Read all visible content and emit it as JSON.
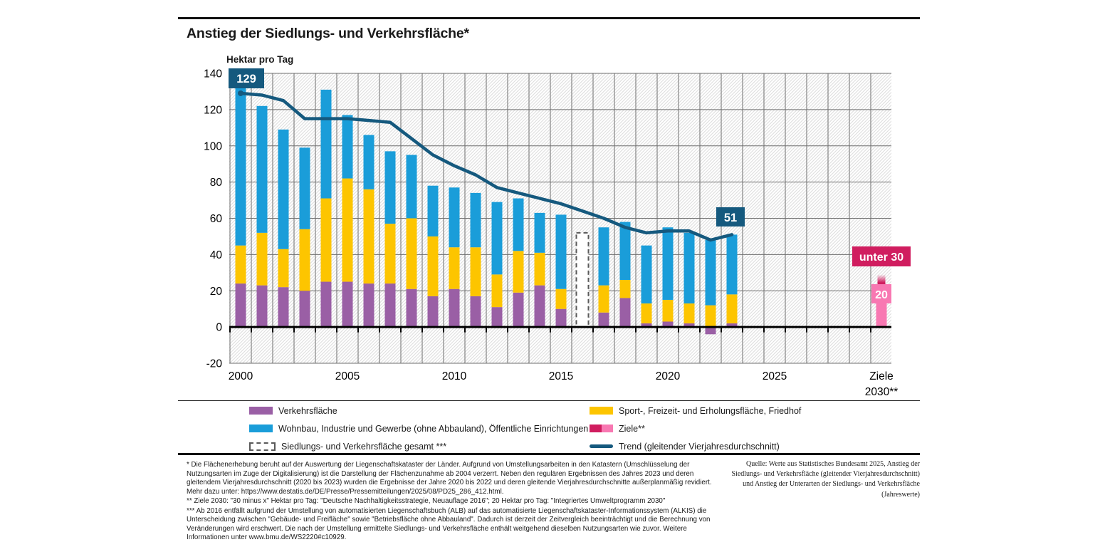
{
  "title": "Anstieg der Siedlungs- und Verkehrsfläche*",
  "y_axis_title": "Hektar pro Tag",
  "colors": {
    "purple": "#9a5fa5",
    "yellow": "#fdc500",
    "blue": "#1a9dd9",
    "teal": "#15597e",
    "crimson": "#d01d5f",
    "pink": "#f878b2",
    "grid": "#6e6e6e",
    "hatch": "#dedede",
    "dash_border": "#595959"
  },
  "chart_data": {
    "type": "bar",
    "subtype": "stacked bars with moving-average trend line",
    "unit": "Hektar pro Tag",
    "ylim": [
      -20,
      140
    ],
    "y_ticks": [
      140,
      120,
      100,
      80,
      60,
      40,
      20,
      0,
      -20
    ],
    "x_ticks": [
      "2000",
      "2005",
      "2010",
      "2015",
      "2020",
      "2025"
    ],
    "x_target_label_line1": "Ziele",
    "x_target_label_line2": "2030**",
    "years": [
      2000,
      2001,
      2002,
      2003,
      2004,
      2005,
      2006,
      2007,
      2008,
      2009,
      2010,
      2011,
      2012,
      2013,
      2014,
      2015,
      2016,
      2017,
      2018,
      2019,
      2020,
      2021,
      2022,
      2023
    ],
    "series": [
      {
        "name": "Verkehrsfläche",
        "color": "#9a5fa5",
        "values": [
          24,
          23,
          22,
          20,
          25,
          25,
          24,
          24,
          21,
          17,
          21,
          17,
          11,
          19,
          23,
          10,
          null,
          8,
          16,
          2,
          3,
          2,
          -4,
          2
        ]
      },
      {
        "name": "Sport-, Freizeit- und Erholungsfläche, Friedhof",
        "color": "#fdc500",
        "values": [
          21,
          29,
          21,
          34,
          46,
          57,
          52,
          33,
          39,
          33,
          23,
          27,
          18,
          23,
          18,
          11,
          null,
          15,
          10,
          11,
          12,
          11,
          12,
          16
        ]
      },
      {
        "name": "Wohnbau, Industrie und Gewerbe (ohne Abbauland), Öffentliche Einrichtungen",
        "color": "#1a9dd9",
        "values": [
          87,
          70,
          66,
          45,
          60,
          35,
          30,
          40,
          35,
          28,
          33,
          30,
          40,
          29,
          22,
          41,
          null,
          32,
          32,
          32,
          40,
          39,
          36,
          33
        ]
      }
    ],
    "dashed_bar": {
      "year": 2016,
      "total": 52,
      "label": "Siedlungs- und Verkehrsfläche gesamt ***"
    },
    "trend": {
      "name": "Trend (gleitender Vierjahresdurchschnitt)",
      "color": "#15597e",
      "values": [
        129,
        128,
        125,
        115,
        115,
        115,
        114,
        113,
        104,
        95,
        89,
        84,
        77,
        74,
        71,
        68,
        64,
        60,
        55,
        52,
        53,
        53,
        48,
        51
      ]
    },
    "annotations": {
      "trend_start_label": "129",
      "trend_end_label": "51"
    },
    "targets": {
      "legend_label": "Ziele**",
      "bar_value": 20,
      "band_top": 29,
      "badge_upper": "unter 30",
      "badge_lower": "20",
      "color_dark": "#d01d5f",
      "color_light": "#f878b2"
    },
    "legend_position": "bottom"
  },
  "legend": {
    "items": [
      {
        "label": "Verkehrsfläche"
      },
      {
        "label": "Wohnbau, Industrie und Gewerbe (ohne Abbauland), Öffentliche Einrichtungen"
      },
      {
        "label": "Siedlungs- und Verkehrsfläche gesamt ***"
      },
      {
        "label": "Sport-, Freizeit- und Erholungsfläche, Friedhof"
      },
      {
        "label": "Ziele**"
      },
      {
        "label": "Trend (gleitender Vierjahresdurchschnitt)"
      }
    ]
  },
  "footnotes": [
    "* Die Flächenerhebung beruht auf der Auswertung der Liegenschaftskataster der Länder. Aufgrund von Umstellungsarbeiten in den Katastern (Umschlüsselung der Nutzungsarten im Zuge der Digitalisierung) ist die Darstellung der Flächenzunahme ab 2004 verzerrt. Neben den regulären Ergebnissen des Jahres 2023 und deren gleitendem Vierjahresdurchschnitt (2020 bis 2023) wurden die Ergebnisse der Jahre 2020 bis 2022 und deren gleitende Vierjahresdurchschnitte außerplanmäßig revidiert. Mehr dazu unter: https://www.destatis.de/DE/Presse/Pressemitteilungen/2025/08/PD25_286_412.html.",
    "** Ziele 2030: \"30 minus x\" Hektar pro Tag: \"Deutsche Nachhaltigkeitsstrategie, Neuauflage 2016\"; 20 Hektar pro Tag: \"Integriertes Umweltprogramm 2030\"",
    "*** Ab 2016 entfällt aufgrund der Umstellung von automatisierten Liegenschaftsbuch (ALB) auf das automatisierte Liegenschaftskataster-Informationssystem (ALKIS) die Unterscheidung zwischen \"Gebäude- und Freifläche\" sowie \"Betriebsfläche ohne Abbauland\". Dadurch ist derzeit der Zeitvergleich beeinträchtigt und die Berechnung von Veränderungen wird erschwert. Die nach der Umstellung ermittelte Siedlungs- und Verkehrsfläche enthält weitgehend dieselben Nutzungsarten wie zuvor. Weitere Informationen unter www.bmu.de/WS2220#c10929."
  ],
  "source": "Quelle: Werte aus Statistisches Bundesamt 2025, Anstieg der Siedlungs- und Verkehrsfläche (gleitender Vierjahresdurchschnitt) und Anstieg der Unterarten der Siedlungs- und Verkehrsfläche (Jahreswerte)"
}
